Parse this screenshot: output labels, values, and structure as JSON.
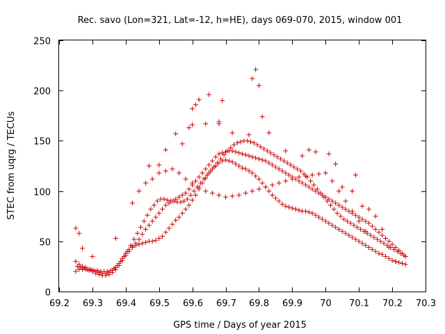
{
  "chart_data": {
    "type": "scatter",
    "title": "Rec. savo (Lon=321, Lat=-12, h=HE), days 069-070, 2015, window 001",
    "xlabel": "GPS time / Days of year 2015",
    "ylabel": "STEC from uqrg / TECUs",
    "xlim": [
      69.2,
      70.3
    ],
    "ylim": [
      0,
      250
    ],
    "xticks": [
      69.2,
      69.3,
      69.4,
      69.5,
      69.6,
      69.7,
      69.8,
      69.9,
      70,
      70.1,
      70.2,
      70.3
    ],
    "xtick_labels": [
      "69.2",
      "69.3",
      "69.4",
      "69.5",
      "69.6",
      "69.7",
      "69.8",
      "69.9",
      "70",
      "70.1",
      "70.2",
      "70.3"
    ],
    "yticks": [
      0,
      50,
      100,
      150,
      200,
      250
    ],
    "ytick_labels": [
      "0",
      "50",
      "100",
      "150",
      "200",
      "250"
    ],
    "grid": false,
    "marker": "+",
    "color": "#cc0000",
    "series": [
      {
        "name": "STEC",
        "x": [
          69.25,
          69.26,
          69.27,
          69.28,
          69.29,
          69.3,
          69.31,
          69.32,
          69.33,
          69.34,
          69.35,
          69.36,
          69.37,
          69.38,
          69.39,
          69.4,
          69.41,
          69.42,
          69.43,
          69.44,
          69.45,
          69.46,
          69.47,
          69.48,
          69.49,
          69.5,
          69.51,
          69.52,
          69.53,
          69.54,
          69.55,
          69.56,
          69.57,
          69.58,
          69.59,
          69.6,
          69.61,
          69.62,
          69.63,
          69.64,
          69.65,
          69.66,
          69.67,
          69.68,
          69.69,
          69.7,
          69.71,
          69.72,
          69.73,
          69.74,
          69.75,
          69.76,
          69.77,
          69.78,
          69.79,
          69.8,
          69.81,
          69.82,
          69.83,
          69.84,
          69.85,
          69.86,
          69.87,
          69.88,
          69.89,
          69.9,
          69.91,
          69.92,
          69.93,
          69.94,
          69.95,
          69.96,
          69.97,
          69.98,
          69.99,
          70.0,
          70.01,
          70.02,
          70.03,
          70.04,
          70.05,
          70.06,
          70.07,
          70.08,
          70.09,
          70.1,
          70.11,
          70.12,
          70.13,
          70.14,
          70.15,
          70.16,
          70.17,
          70.18,
          70.19,
          70.2,
          70.21,
          70.22,
          70.23,
          70.24,
          69.25,
          69.26,
          69.27,
          69.28,
          69.29,
          69.3,
          69.31,
          69.32,
          69.33,
          69.34,
          69.35,
          69.36,
          69.37,
          69.38,
          69.39,
          69.4,
          69.41,
          69.42,
          69.43,
          69.44,
          69.45,
          69.46,
          69.47,
          69.48,
          69.49,
          69.5,
          69.51,
          69.52,
          69.53,
          69.54,
          69.55,
          69.56,
          69.57,
          69.58,
          69.59,
          69.6,
          69.61,
          69.62,
          69.63,
          69.64,
          69.65,
          69.66,
          69.67,
          69.68,
          69.69,
          69.7,
          69.71,
          69.72,
          69.73,
          69.74,
          69.75,
          69.76,
          69.77,
          69.78,
          69.79,
          69.8,
          69.81,
          69.82,
          69.83,
          69.84,
          69.85,
          69.86,
          69.87,
          69.88,
          69.89,
          69.9,
          69.91,
          69.92,
          69.93,
          69.94,
          69.95,
          69.96,
          69.97,
          69.98,
          69.99,
          70.0,
          70.01,
          70.02,
          70.03,
          70.04,
          70.05,
          70.06,
          70.07,
          70.08,
          70.09,
          70.1,
          70.11,
          70.12,
          70.13,
          70.14,
          70.15,
          70.16,
          70.17,
          70.18,
          70.19,
          70.2,
          70.21,
          70.22,
          70.23,
          70.24,
          69.255,
          69.265,
          69.275,
          69.285,
          69.295,
          69.305,
          69.315,
          69.325,
          69.335,
          69.345,
          69.355,
          69.365,
          69.375,
          69.385,
          69.395,
          69.405,
          69.415,
          69.425,
          69.435,
          69.445,
          69.455,
          69.465,
          69.475,
          69.485,
          69.495,
          69.505,
          69.515,
          69.525,
          69.535,
          69.545,
          69.555,
          69.565,
          69.575,
          69.585,
          69.595,
          69.605,
          69.615,
          69.625,
          69.635,
          69.645,
          69.655,
          69.665,
          69.675,
          69.685,
          69.695,
          69.705,
          69.715,
          69.725,
          69.735,
          69.745,
          69.755,
          69.765,
          69.775,
          69.785,
          69.795,
          69.805,
          69.815,
          69.825,
          69.835,
          69.845,
          69.855,
          69.865,
          69.875,
          69.885,
          69.895,
          69.905,
          69.915,
          69.925,
          69.935,
          69.945,
          69.955,
          69.965,
          69.975,
          69.985,
          69.995,
          70.005,
          70.015,
          70.025,
          70.035,
          70.045,
          70.055,
          70.065,
          70.075,
          70.085,
          70.095,
          70.105,
          70.115,
          70.125,
          70.135,
          70.145,
          70.155,
          70.165,
          70.175,
          70.185,
          70.195,
          70.205,
          70.215,
          70.225,
          70.235,
          69.44,
          69.46,
          69.48,
          69.5,
          69.52,
          69.54,
          69.56,
          69.58,
          69.6,
          69.62,
          69.64,
          69.66,
          69.68,
          69.7,
          69.72,
          69.74,
          69.76,
          69.78,
          69.8,
          69.82,
          69.84,
          69.86,
          69.88,
          69.9,
          69.92,
          69.94,
          69.96,
          69.98,
          70.0,
          70.02,
          70.04,
          70.06,
          70.08,
          70.1,
          70.12,
          69.25,
          69.26,
          69.27,
          69.3,
          69.37,
          69.42,
          69.47,
          69.5,
          69.52,
          69.55,
          69.57,
          69.59,
          69.6,
          69.6,
          69.61,
          69.62,
          69.64,
          69.65,
          69.68,
          69.68,
          69.69,
          69.72,
          69.77,
          69.78,
          69.79,
          69.8,
          69.81,
          69.83,
          69.88,
          69.93,
          69.95,
          69.97,
          70.01,
          70.03,
          70.05,
          70.08,
          70.09,
          70.11,
          70.13,
          70.15,
          70.17,
          70.19,
          70.21
        ],
        "y": [
          30,
          27,
          25,
          24,
          22,
          21,
          20,
          19,
          18,
          18,
          19,
          21,
          24,
          28,
          33,
          38,
          42,
          45,
          46,
          47,
          48,
          49,
          50,
          50,
          51,
          53,
          55,
          59,
          63,
          67,
          71,
          74,
          78,
          82,
          86,
          91,
          96,
          102,
          108,
          113,
          118,
          122,
          125,
          128,
          130,
          131,
          130,
          129,
          127,
          125,
          123,
          122,
          120,
          118,
          115,
          112,
          108,
          104,
          100,
          96,
          93,
          90,
          87,
          85,
          84,
          83,
          82,
          81,
          80,
          80,
          79,
          78,
          76,
          74,
          72,
          70,
          68,
          66,
          64,
          62,
          60,
          58,
          56,
          54,
          52,
          50,
          48,
          46,
          44,
          42,
          40,
          38,
          37,
          35,
          33,
          31,
          30,
          29,
          28,
          27,
          20,
          22,
          22,
          22,
          21,
          20,
          18,
          17,
          16,
          16,
          17,
          19,
          22,
          26,
          31,
          36,
          40,
          44,
          48,
          52,
          57,
          62,
          66,
          70,
          74,
          78,
          82,
          86,
          88,
          90,
          92,
          94,
          96,
          98,
          102,
          106,
          110,
          114,
          118,
          122,
          126,
          130,
          134,
          137,
          138,
          139,
          140,
          140,
          139,
          138,
          137,
          136,
          135,
          134,
          133,
          132,
          131,
          130,
          128,
          126,
          124,
          122,
          120,
          118,
          116,
          114,
          112,
          110,
          108,
          106,
          104,
          102,
          100,
          98,
          96,
          94,
          92,
          90,
          88,
          86,
          84,
          82,
          80,
          78,
          76,
          74,
          72,
          70,
          68,
          65,
          62,
          59,
          56,
          53,
          50,
          47,
          44,
          41,
          38,
          35,
          25,
          24,
          23,
          22,
          22,
          21,
          21,
          20,
          20,
          20,
          21,
          23,
          26,
          30,
          35,
          40,
          46,
          52,
          58,
          64,
          70,
          76,
          82,
          86,
          90,
          92,
          92,
          91,
          90,
          90,
          89,
          89,
          90,
          92,
          96,
          100,
          104,
          108,
          112,
          116,
          120,
          124,
          128,
          132,
          136,
          140,
          143,
          146,
          148,
          149,
          150,
          150,
          149,
          148,
          146,
          144,
          142,
          140,
          138,
          136,
          134,
          132,
          130,
          128,
          126,
          124,
          122,
          120,
          117,
          114,
          110,
          106,
          102,
          98,
          94,
          90,
          86,
          82,
          78,
          75,
          72,
          70,
          68,
          66,
          64,
          62,
          60,
          58,
          56,
          54,
          52,
          50,
          48,
          46,
          44,
          42,
          40,
          38,
          36,
          100,
          108,
          112,
          118,
          120,
          122,
          118,
          112,
          108,
          104,
          100,
          98,
          96,
          94,
          95,
          96,
          98,
          100,
          102,
          104,
          106,
          108,
          110,
          112,
          114,
          115,
          116,
          117,
          118,
          110,
          100,
          90,
          80,
          70,
          60,
          63,
          58,
          43,
          35,
          53,
          88,
          125,
          126,
          141,
          157,
          147,
          163,
          166,
          182,
          186,
          191,
          167,
          196,
          169,
          167,
          190,
          158,
          156,
          212,
          221,
          205,
          174,
          158,
          140,
          135,
          141,
          139,
          137,
          127,
          104,
          100,
          116,
          85,
          82,
          75,
          62,
          44,
          30
        ]
      }
    ]
  }
}
